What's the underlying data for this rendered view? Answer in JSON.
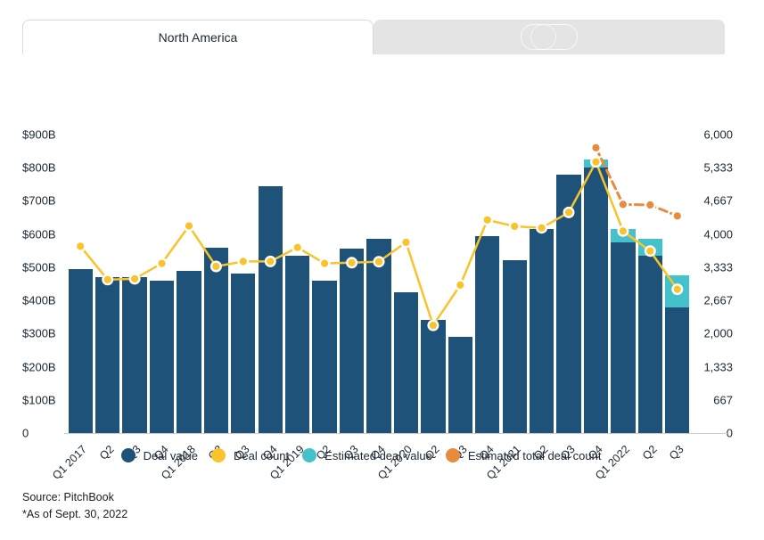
{
  "tabs": {
    "active_label": "North America",
    "inactive_label": ""
  },
  "chart_data": {
    "type": "bar",
    "title": "",
    "categories": [
      "Q1 2017",
      "Q2",
      "Q3",
      "Q4",
      "Q1 2018",
      "Q2",
      "Q3",
      "Q4",
      "Q1 2019",
      "Q2",
      "Q3",
      "Q4",
      "Q1 2020",
      "Q2",
      "Q3",
      "Q4",
      "Q1 2021",
      "Q2",
      "Q3",
      "Q4",
      "Q1 2022",
      "Q2",
      "Q3"
    ],
    "series": [
      {
        "name": "Deal value",
        "type": "bar",
        "unit": "$B",
        "color": "#1e5278",
        "values": [
          495,
          470,
          470,
          460,
          490,
          560,
          480,
          745,
          535,
          460,
          555,
          585,
          425,
          340,
          290,
          595,
          520,
          615,
          780,
          800,
          575,
          535,
          380
        ]
      },
      {
        "name": "Estimated deal value",
        "type": "bar-stacked-top",
        "unit": "$B",
        "color": "#44c1ca",
        "values": [
          null,
          null,
          null,
          null,
          null,
          null,
          null,
          null,
          null,
          null,
          null,
          null,
          null,
          null,
          null,
          null,
          null,
          null,
          null,
          25,
          40,
          50,
          95
        ]
      },
      {
        "name": "Deal count",
        "type": "line",
        "axis": "right",
        "color": "#f9c32b",
        "marker_stroke": "#ffffff",
        "values": [
          3755,
          3085,
          3100,
          3410,
          4165,
          3350,
          3450,
          3450,
          3730,
          3410,
          3425,
          3445,
          3835,
          2165,
          2975,
          4285,
          4155,
          4125,
          4435,
          5450,
          4060,
          3660,
          2890
        ]
      },
      {
        "name": "Estimated total deal count",
        "type": "line",
        "axis": "right",
        "dashed": true,
        "color": "#e78b3d",
        "marker_stroke": "#ffffff",
        "values": [
          null,
          null,
          null,
          null,
          null,
          null,
          null,
          null,
          null,
          null,
          null,
          null,
          null,
          null,
          null,
          null,
          null,
          null,
          null,
          5735,
          4595,
          4585,
          4365
        ]
      }
    ],
    "left_axis": {
      "max": 900,
      "min": 0,
      "ticks": [
        "$900B",
        "$800B",
        "$700B",
        "$600B",
        "$500B",
        "$400B",
        "$300B",
        "$200B",
        "$100B",
        "0"
      ]
    },
    "right_axis": {
      "max": 6000,
      "min": 0,
      "ticks": [
        "6,000",
        "5,333",
        "4,667",
        "4,000",
        "3,333",
        "2,667",
        "2,000",
        "1,333",
        "667",
        "0"
      ]
    },
    "grid": false,
    "legend_position": "bottom"
  },
  "legend": {
    "items": [
      {
        "label": "Deal value",
        "color": "#1e5278"
      },
      {
        "label": "Deal count",
        "color": "#f9c32b"
      },
      {
        "label": "Estimated deal value",
        "color": "#44c1ca"
      },
      {
        "label": "Estimated total deal count",
        "color": "#e78b3d"
      }
    ]
  },
  "footer": {
    "source": "Source: PitchBook",
    "as_of": "*As of Sept. 30, 2022"
  }
}
